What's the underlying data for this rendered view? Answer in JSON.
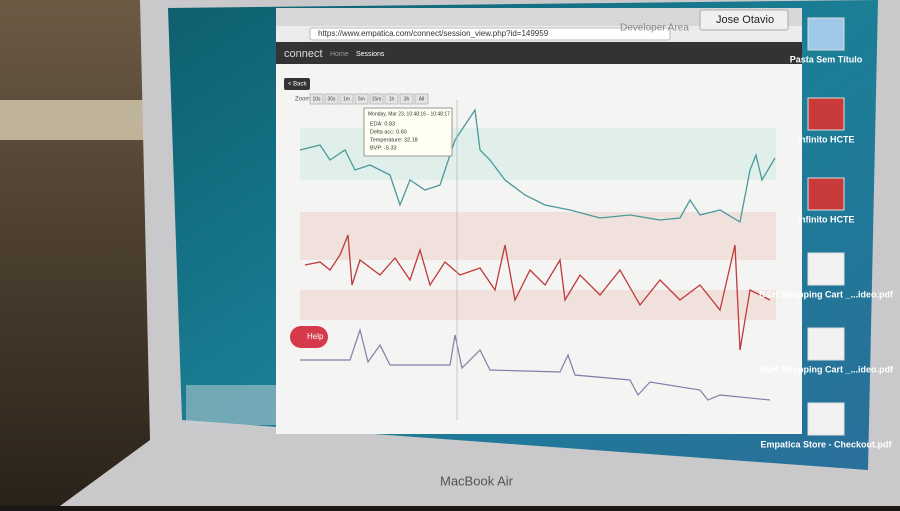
{
  "browser": {
    "url": "https://www.empatica.com/connect/session_view.php?id=149959",
    "logo": "connect",
    "nav": [
      "Home",
      "Sessions"
    ],
    "developer_area": "Developer Area",
    "user": "Jose Otavio"
  },
  "toolbar": {
    "back": "< Back",
    "zoom_label": "Zoom",
    "zoom_options": [
      "10s",
      "30s",
      "1m",
      "5m",
      "15m",
      "1h",
      "3h",
      "All"
    ]
  },
  "tooltip": {
    "time": "Monday, Mar 23, 10:48:16 - 10:48:17",
    "lines": [
      "EDA: 0.83",
      "Delta acc: 0.60",
      "Temperature: 32.18",
      "BVP: -5.33"
    ]
  },
  "help": "Help",
  "desktop_icons": [
    "Pasta Sem Título",
    "Infinito HCTE",
    "Infinito HCTE",
    "B&H Shopping Cart _...ideo.pdf",
    "B&H Shopping Cart _...ideo.pdf",
    "Empatica Store - Checkout.pdf"
  ],
  "laptop_label": "MacBook Air"
}
